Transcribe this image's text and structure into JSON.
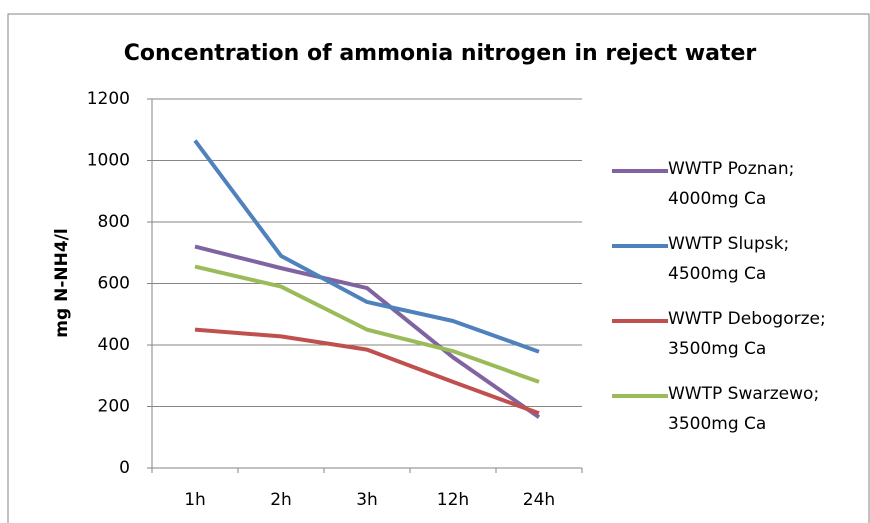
{
  "chart_data": {
    "type": "line",
    "title": "Concentration of ammonia nitrogen in reject water",
    "y_label": "mg N-NH4/l",
    "categories": [
      "1h",
      "2h",
      "3h",
      "12h",
      "24h"
    ],
    "series": [
      {
        "name": "WWTP Poznan; 4000mg Ca",
        "color": "#8064a2",
        "values": [
          720,
          650,
          585,
          360,
          165
        ]
      },
      {
        "name": "WWTP Slupsk; 4500mg Ca",
        "color": "#4f81bd",
        "values": [
          1065,
          690,
          540,
          478,
          378
        ]
      },
      {
        "name": "WWTP Debogorze; 3500mg Ca",
        "color": "#c0504d",
        "values": [
          450,
          428,
          385,
          280,
          178
        ]
      },
      {
        "name": "WWTP Swarzewo; 3500mg Ca",
        "color": "#9bbb59",
        "values": [
          655,
          590,
          450,
          380,
          280
        ]
      }
    ],
    "ylim": [
      0,
      1200
    ],
    "yticks": [
      0,
      200,
      400,
      600,
      800,
      1000,
      1200
    ],
    "grid": true,
    "legend": "right"
  }
}
